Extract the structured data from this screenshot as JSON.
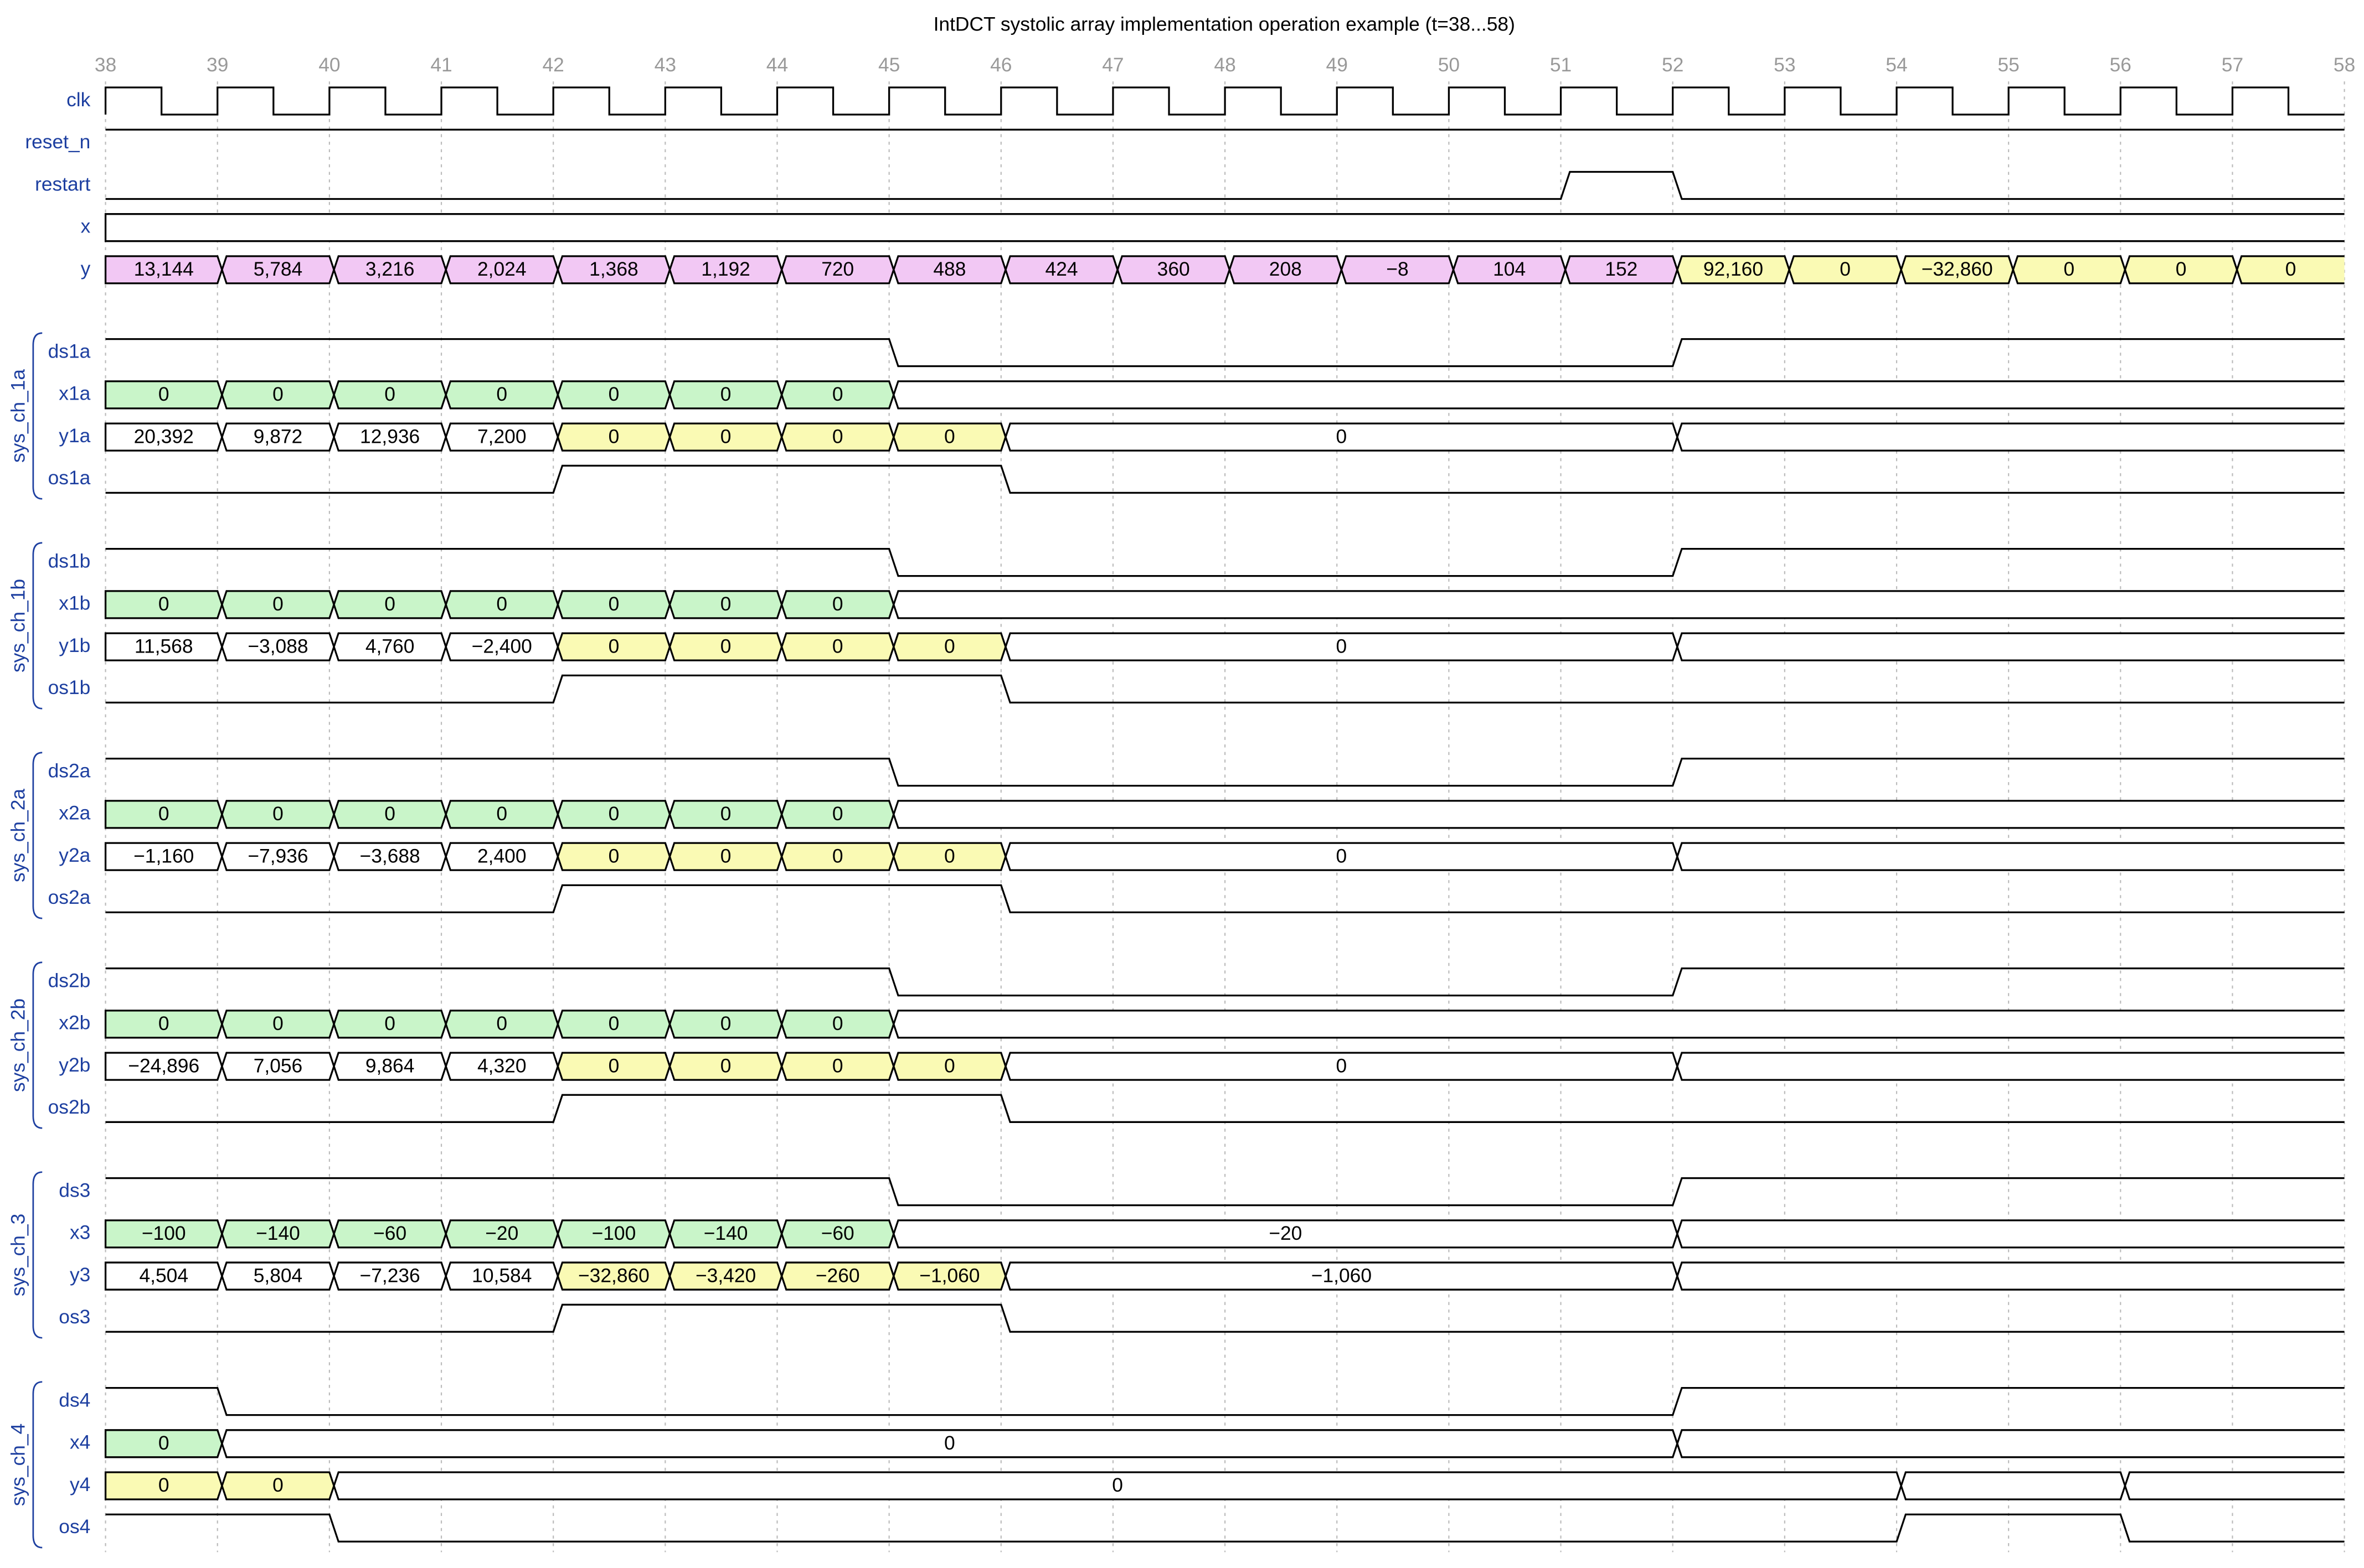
{
  "title": "IntDCT systolic array implementation operation example (t=38...58)",
  "ticks": [
    38,
    39,
    40,
    41,
    42,
    43,
    44,
    45,
    46,
    47,
    48,
    49,
    50,
    51,
    52,
    53,
    54,
    55,
    56,
    57,
    58
  ],
  "fills": {
    "2": "#ffffff",
    "3": "#fafab4",
    "4": "#c9f5c9",
    "5": "#f2c8f4",
    "e": "#ffffff"
  },
  "signals": [
    {
      "name": "clk",
      "wave": "p..................."
    },
    {
      "name": "reset_n",
      "wave": "1..................."
    },
    {
      "name": "restart",
      "wave": "0............10....."
    },
    {
      "name": "x",
      "wave": "e..................."
    },
    {
      "name": "y",
      "wave": "55555555555555333333",
      "data": [
        "13,144",
        "5,784",
        "3,216",
        "2,024",
        "1,368",
        "1,192",
        "720",
        "488",
        "424",
        "360",
        "208",
        "−8",
        "104",
        "152",
        "92,160",
        "0",
        "−32,860",
        "0",
        "0",
        "0"
      ]
    }
  ],
  "groups": [
    {
      "label": "sys_ch_1a",
      "signals": [
        {
          "name": "ds1a",
          "wave": "1......0......1....."
        },
        {
          "name": "x1a",
          "wave": "4444444e............",
          "data": [
            "0",
            "0",
            "0",
            "0",
            "0",
            "0",
            "0"
          ]
        },
        {
          "name": "y1a",
          "wave": "222233332.....e.....",
          "data": [
            "20,392",
            "9,872",
            "12,936",
            "7,200",
            "0",
            "0",
            "0",
            "0",
            "0"
          ]
        },
        {
          "name": "os1a",
          "wave": "0...1...0..........."
        }
      ]
    },
    {
      "label": "sys_ch_1b",
      "signals": [
        {
          "name": "ds1b",
          "wave": "1......0......1....."
        },
        {
          "name": "x1b",
          "wave": "4444444e............",
          "data": [
            "0",
            "0",
            "0",
            "0",
            "0",
            "0",
            "0"
          ]
        },
        {
          "name": "y1b",
          "wave": "222233332.....e.....",
          "data": [
            "11,568",
            "−3,088",
            "4,760",
            "−2,400",
            "0",
            "0",
            "0",
            "0",
            "0"
          ]
        },
        {
          "name": "os1b",
          "wave": "0...1...0..........."
        }
      ]
    },
    {
      "label": "sys_ch_2a",
      "signals": [
        {
          "name": "ds2a",
          "wave": "1......0......1....."
        },
        {
          "name": "x2a",
          "wave": "4444444e............",
          "data": [
            "0",
            "0",
            "0",
            "0",
            "0",
            "0",
            "0"
          ]
        },
        {
          "name": "y2a",
          "wave": "222233332.....e.....",
          "data": [
            "−1,160",
            "−7,936",
            "−3,688",
            "2,400",
            "0",
            "0",
            "0",
            "0",
            "0"
          ]
        },
        {
          "name": "os2a",
          "wave": "0...1...0..........."
        }
      ]
    },
    {
      "label": "sys_ch_2b",
      "signals": [
        {
          "name": "ds2b",
          "wave": "1......0......1....."
        },
        {
          "name": "x2b",
          "wave": "4444444e............",
          "data": [
            "0",
            "0",
            "0",
            "0",
            "0",
            "0",
            "0"
          ]
        },
        {
          "name": "y2b",
          "wave": "222233332.....e.....",
          "data": [
            "−24,896",
            "7,056",
            "9,864",
            "4,320",
            "0",
            "0",
            "0",
            "0",
            "0"
          ]
        },
        {
          "name": "os2b",
          "wave": "0...1...0..........."
        }
      ]
    },
    {
      "label": "sys_ch_3",
      "signals": [
        {
          "name": "ds3",
          "wave": "1......0......1....."
        },
        {
          "name": "x3",
          "wave": "44444442......e.....",
          "data": [
            "−100",
            "−140",
            "−60",
            "−20",
            "−100",
            "−140",
            "−60",
            "−20"
          ]
        },
        {
          "name": "y3",
          "wave": "222233332.....e.....",
          "data": [
            "4,504",
            "5,804",
            "−7,236",
            "10,584",
            "−32,860",
            "−3,420",
            "−260",
            "−1,060",
            "−1,060"
          ]
        },
        {
          "name": "os3",
          "wave": "0...1...0..........."
        }
      ]
    },
    {
      "label": "sys_ch_4",
      "signals": [
        {
          "name": "ds4",
          "wave": "10............1....."
        },
        {
          "name": "x4",
          "wave": "42............e.....",
          "data": [
            "0",
            "0"
          ]
        },
        {
          "name": "y4",
          "wave": "332.............e.e.",
          "data": [
            "0",
            "0",
            "0"
          ]
        },
        {
          "name": "os4",
          "wave": "1.0.............1.0."
        }
      ]
    }
  ]
}
